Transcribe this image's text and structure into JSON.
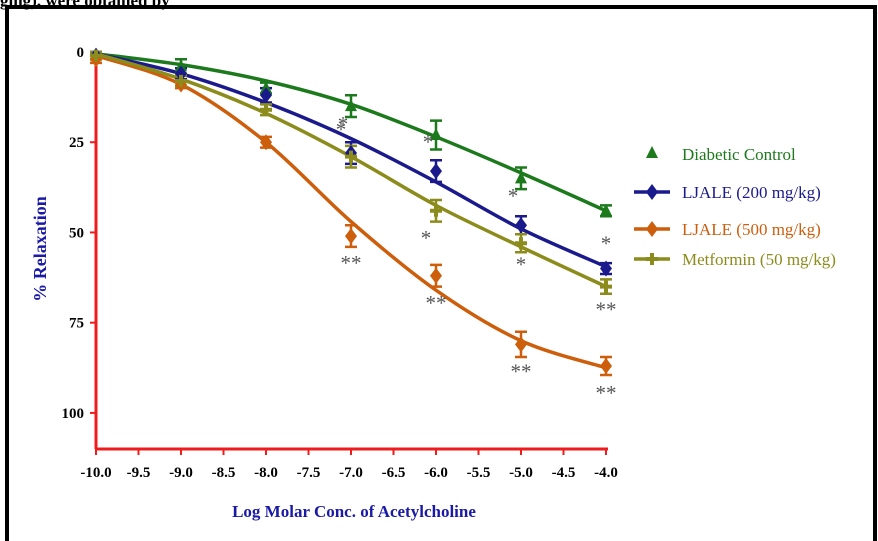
{
  "caption_fragment": "ging), were obtained by",
  "chart_data": {
    "type": "line",
    "title": "",
    "xlabel": "Log Molar Conc. of Acetylcholine",
    "ylabel": "% Relaxation",
    "xlim": [
      -10.0,
      -4.0
    ],
    "ylim": [
      0,
      110
    ],
    "y_inverted": true,
    "x_ticks": [
      -10.0,
      -9.5,
      -9.0,
      -8.5,
      -8.0,
      -7.5,
      -7.0,
      -6.5,
      -6.0,
      -5.5,
      -5.0,
      -4.5,
      -4.0
    ],
    "x_tick_labels": [
      "-10.0",
      "-9.5",
      "-9.0",
      "-8.5",
      "-8.0",
      "-7.5",
      "-7.0",
      "-6.5",
      "-6.0",
      "-5.5",
      "-5.0",
      "-4.5",
      "-4.0"
    ],
    "y_ticks": [
      0,
      25,
      50,
      75,
      100
    ],
    "y_tick_labels": [
      "0",
      "25",
      "50",
      "75",
      "100"
    ],
    "grid": false,
    "legend_position": "right",
    "series": [
      {
        "name": "Diabetic Control",
        "color": "#1c7a1c",
        "marker": "triangle",
        "x": [
          -10,
          -9,
          -8,
          -7,
          -6,
          -5,
          -4
        ],
        "y": [
          1,
          4,
          10,
          15,
          23,
          35,
          44
        ],
        "err": [
          1,
          2,
          1.5,
          3,
          4,
          3,
          1.5
        ],
        "fit": [
          0.5,
          3.5,
          8,
          14.5,
          23.5,
          33.5,
          44
        ],
        "sig": [
          "",
          "",
          "",
          "",
          "",
          "",
          ""
        ]
      },
      {
        "name": "LJALE (200 mg/kg)",
        "color": "#1a1a8c",
        "marker": "diamond",
        "x": [
          -10,
          -9,
          -8,
          -7,
          -6,
          -5,
          -4
        ],
        "y": [
          1,
          6,
          12,
          28,
          33,
          48,
          60
        ],
        "err": [
          1,
          1.5,
          2,
          3,
          3,
          2.5,
          1.5
        ],
        "fit": [
          0.5,
          6,
          14,
          24,
          36,
          49,
          59.5
        ],
        "sig": [
          "",
          "",
          "",
          "*",
          "*",
          "*",
          "*"
        ]
      },
      {
        "name": "LJALE (500 mg/kg)",
        "color": "#cc5e0c",
        "marker": "diamond",
        "x": [
          -10,
          -9,
          -8,
          -7,
          -6,
          -5,
          -4
        ],
        "y": [
          2,
          9,
          25,
          51,
          62,
          81,
          87
        ],
        "err": [
          1,
          1,
          1.5,
          3,
          3,
          3.5,
          2.5
        ],
        "fit": [
          1,
          9,
          25,
          47,
          66,
          80,
          87.5
        ],
        "sig": [
          "",
          "",
          "",
          "**",
          "**",
          "**",
          "**"
        ]
      },
      {
        "name": "Metformin  (50 mg/kg)",
        "color": "#8c8c1c",
        "marker": "plus",
        "x": [
          -10,
          -9,
          -8,
          -7,
          -6,
          -5,
          -4
        ],
        "y": [
          1,
          8,
          16,
          29,
          44,
          53,
          65
        ],
        "err": [
          1,
          1.5,
          1.5,
          3,
          3,
          2.5,
          2
        ],
        "fit": [
          0.5,
          7.5,
          17,
          29,
          42.5,
          54,
          65
        ],
        "sig": [
          "",
          "",
          "",
          "*",
          "*",
          "*",
          "**"
        ]
      }
    ],
    "legend_colors": {
      "Diabetic Control": "#1c7a1c",
      "LJALE (200 mg/kg)": "#1a1a8c",
      "LJALE (500 mg/kg)": "#cc5e0c",
      "Metformin  (50 mg/kg)": "#8c8c1c"
    },
    "axis_color": "#ee1c1c"
  }
}
